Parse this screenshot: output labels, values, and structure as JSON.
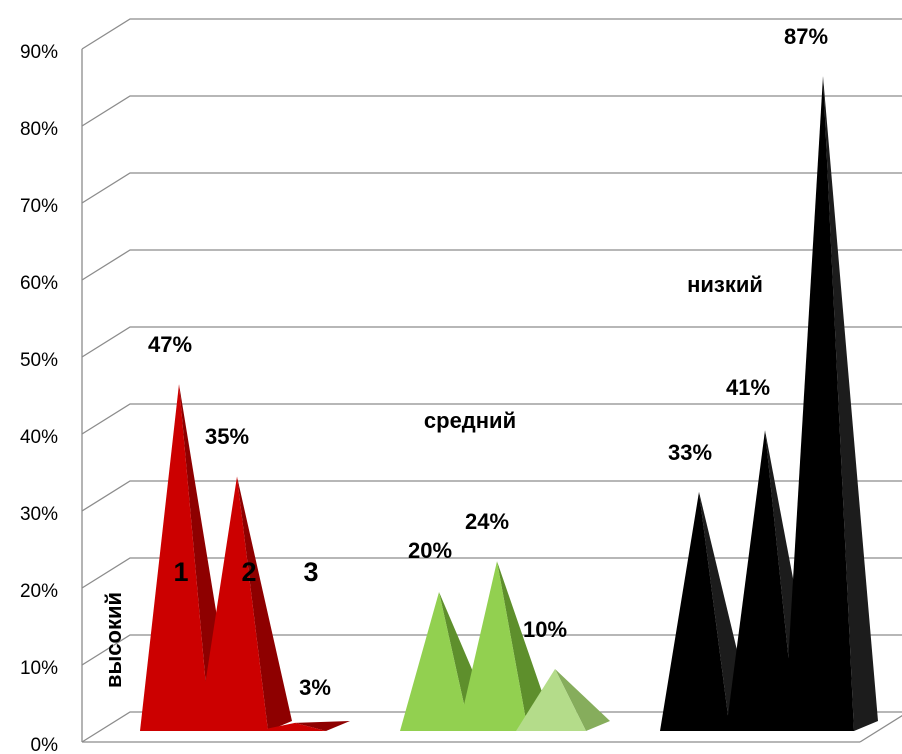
{
  "chart_data": {
    "type": "bar",
    "style": "3d-pyramid",
    "title": "",
    "xlabel": "",
    "ylabel": "",
    "ylim": [
      0,
      90
    ],
    "y_tick_step": 10,
    "y_tick_labels": [
      "0%",
      "10%",
      "20%",
      "30%",
      "40%",
      "50%",
      "60%",
      "70%",
      "80%",
      "90%"
    ],
    "grid": true,
    "legend": "none",
    "groups": [
      {
        "label": "высокий",
        "label_orientation": "vertical",
        "values": [
          47,
          35,
          3
        ],
        "value_labels": [
          "47%",
          "35%",
          "3%"
        ],
        "item_labels": [
          "1",
          "2",
          "3"
        ],
        "colors": [
          {
            "front": "#cc0000",
            "side": "#8e0000"
          },
          {
            "front": "#cc0000",
            "side": "#8e0000"
          },
          {
            "front": "#cc0000",
            "side": "#8e0000"
          }
        ]
      },
      {
        "label": "средний",
        "label_orientation": "horizontal",
        "values": [
          20,
          24,
          10
        ],
        "value_labels": [
          "20%",
          "24%",
          "10%"
        ],
        "item_labels": [],
        "colors": [
          {
            "front": "#92d050",
            "side": "#5e8f2c"
          },
          {
            "front": "#92d050",
            "side": "#5e8f2c"
          },
          {
            "front": "#b4dc8a",
            "side": "#86ad5c"
          }
        ]
      },
      {
        "label": "низкий",
        "label_orientation": "horizontal",
        "values": [
          33,
          41,
          87
        ],
        "value_labels": [
          "33%",
          "41%",
          "87%"
        ],
        "item_labels": [],
        "colors": [
          {
            "front": "#000000",
            "side": "#1c1c1c"
          },
          {
            "front": "#000000",
            "side": "#1c1c1c"
          },
          {
            "front": "#000000",
            "side": "#1c1c1c"
          }
        ]
      }
    ]
  }
}
